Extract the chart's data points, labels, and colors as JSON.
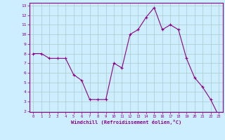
{
  "x": [
    0,
    1,
    2,
    3,
    4,
    5,
    6,
    7,
    8,
    9,
    10,
    11,
    12,
    13,
    14,
    15,
    16,
    17,
    18,
    19,
    20,
    21,
    22,
    23
  ],
  "y": [
    8,
    8,
    7.5,
    7.5,
    7.5,
    5.8,
    5.2,
    3.2,
    3.2,
    3.2,
    7,
    6.5,
    10,
    10.5,
    11.8,
    12.8,
    10.5,
    11,
    10.5,
    7.5,
    5.5,
    4.5,
    3.2,
    1.5
  ],
  "line_color": "#8B008B",
  "marker": "+",
  "bg_color": "#cceeff",
  "grid_color": "#aacccc",
  "xlabel": "Windchill (Refroidissement éolien,°C)",
  "xlabel_color": "#8B008B",
  "tick_color": "#8B008B",
  "axis_color": "#8B008B",
  "ylim": [
    2,
    13
  ],
  "xlim": [
    -0.5,
    23.5
  ],
  "yticks": [
    2,
    3,
    4,
    5,
    6,
    7,
    8,
    9,
    10,
    11,
    12,
    13
  ],
  "xticks": [
    0,
    1,
    2,
    3,
    4,
    5,
    6,
    7,
    8,
    9,
    10,
    11,
    12,
    13,
    14,
    15,
    16,
    17,
    18,
    19,
    20,
    21,
    22,
    23
  ]
}
